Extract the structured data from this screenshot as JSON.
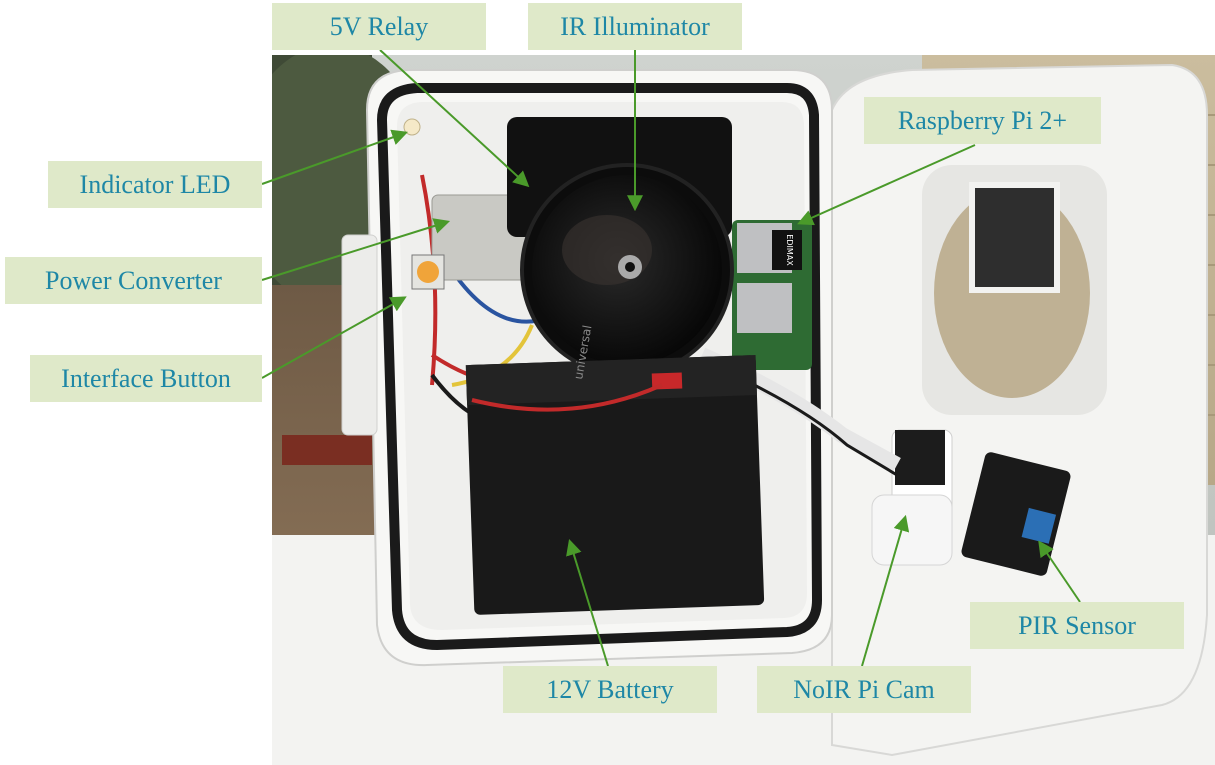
{
  "style": {
    "label_bg": "#dfe9c9",
    "label_text": "#1e87a6",
    "leader_line": "#4a9a2a"
  },
  "labels": {
    "relay_5v": "5V Relay",
    "ir_illuminator": "IR Illuminator",
    "raspberry_pi": "Raspberry Pi 2+",
    "indicator_led": "Indicator LED",
    "power_converter": "Power Converter",
    "interface_button": "Interface Button",
    "battery_12v": "12V Battery",
    "noir_pi_cam": "NoIR Pi Cam",
    "pir_sensor": "PIR Sensor"
  },
  "photo_text": {
    "battery_brand": "universal",
    "wifi_dongle": "EDIMAX"
  }
}
